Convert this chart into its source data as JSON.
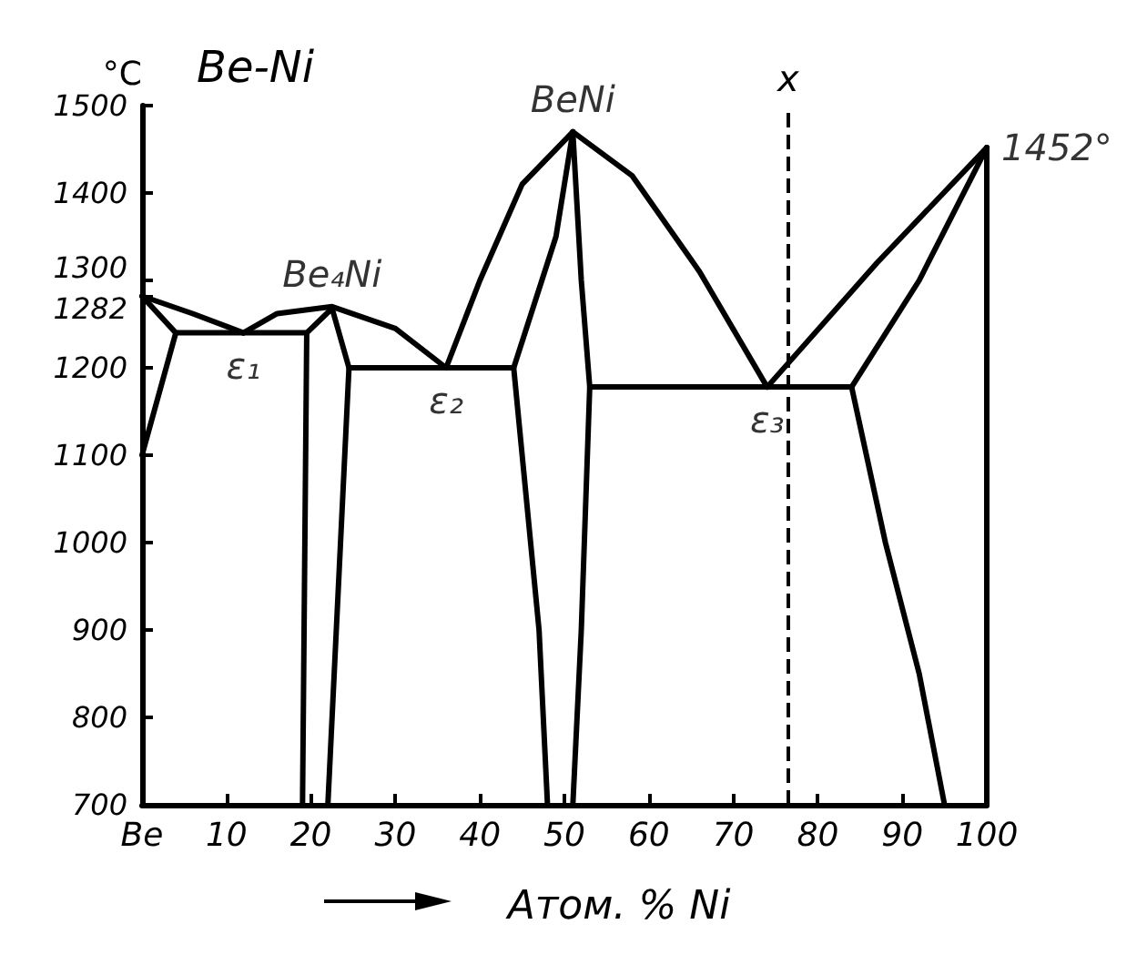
{
  "chart_data": {
    "type": "line",
    "title": "Be-Ni",
    "xlabel": "Атом. % Ni",
    "ylabel": "°C",
    "xlim": [
      0,
      100
    ],
    "ylim": [
      700,
      1500
    ],
    "xticks": [
      {
        "value": 0,
        "label": "Be"
      },
      10,
      20,
      30,
      40,
      50,
      60,
      70,
      80,
      90,
      100
    ],
    "yticks": [
      700,
      800,
      900,
      1000,
      1100,
      1200,
      1282,
      1300,
      1400,
      1500
    ],
    "grid": false,
    "marker": "none",
    "line_style": "solid",
    "series": [
      {
        "color": "#000000",
        "x": [
          0,
          6,
          12
        ],
        "values": [
          1282,
          1262,
          1240
        ]
      },
      {
        "color": "#000000",
        "x": [
          12,
          16,
          22.5,
          30,
          36
        ],
        "values": [
          1240,
          1262,
          1270,
          1245,
          1200
        ]
      },
      {
        "color": "#000000",
        "x": [
          36,
          40,
          45,
          51,
          58,
          66,
          74
        ],
        "values": [
          1200,
          1300,
          1410,
          1470,
          1420,
          1310,
          1178
        ]
      },
      {
        "color": "#000000",
        "x": [
          74,
          87,
          100
        ],
        "values": [
          1178,
          1320,
          1452
        ]
      },
      {
        "color": "#000000",
        "x": [
          100,
          92,
          84
        ],
        "values": [
          1452,
          1300,
          1178
        ]
      },
      {
        "color": "#000000",
        "x": [
          84,
          88,
          92,
          95
        ],
        "values": [
          1178,
          1000,
          850,
          700
        ]
      },
      {
        "color": "#000000",
        "x": [
          0,
          4,
          0
        ],
        "values": [
          1282,
          1240,
          1100
        ]
      },
      {
        "color": "#000000",
        "x": [
          4,
          19.5
        ],
        "values": [
          1240,
          1240
        ]
      },
      {
        "color": "#000000",
        "x": [
          19,
          19.5,
          22.5,
          24.5,
          22
        ],
        "values": [
          700,
          1240,
          1268,
          1200,
          700
        ]
      },
      {
        "color": "#000000",
        "x": [
          24.5,
          44
        ],
        "values": [
          1200,
          1200
        ]
      },
      {
        "color": "#000000",
        "x": [
          51,
          49,
          44,
          47,
          48
        ],
        "values": [
          1470,
          1350,
          1200,
          900,
          700
        ]
      },
      {
        "color": "#000000",
        "x": [
          51,
          52,
          53,
          52,
          51
        ],
        "values": [
          1470,
          1300,
          1178,
          900,
          700
        ]
      },
      {
        "color": "#000000",
        "x": [
          53,
          84
        ],
        "values": [
          1178,
          1178
        ]
      },
      {
        "color": "#000000",
        "x": [
          100,
          100
        ],
        "values": [
          700,
          1452
        ]
      }
    ],
    "ref_lines": [
      {
        "axis": "x",
        "value": 76.5,
        "label": "x",
        "line_style": "dashed",
        "color": "#000000"
      }
    ],
    "annotations": [
      {
        "text": "BeNi",
        "x": 51,
        "y": 1470
      },
      {
        "text": "Be₄Ni",
        "x": 22.5,
        "y": 1270
      },
      {
        "text": "ε₁",
        "x": 12,
        "y": 1240
      },
      {
        "text": "ε₂",
        "x": 36,
        "y": 1200
      },
      {
        "text": "ε₃",
        "x": 74,
        "y": 1178
      },
      {
        "text": "1452°",
        "x": 100,
        "y": 1452
      }
    ]
  }
}
